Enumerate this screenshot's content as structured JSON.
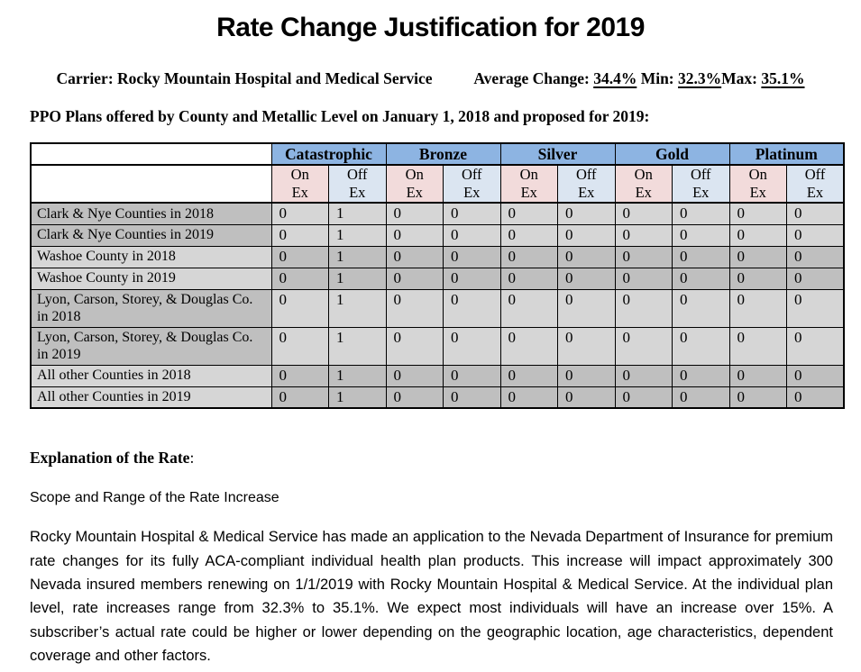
{
  "title": "Rate Change Justification for 2019",
  "carrier": {
    "label": "Carrier:",
    "name": "Rocky Mountain Hospital and Medical Service",
    "average_label": "Average Change:",
    "average_value": "34.4%",
    "min_label": "Min:",
    "min_value": "32.3%",
    "max_label": "Max:",
    "max_value": "35.1%"
  },
  "table_caption": "PPO Plans offered by County and Metallic Level on January 1, 2018 and proposed for 2019:",
  "table": {
    "levels": [
      "Catastrophic",
      "Bronze",
      "Silver",
      "Gold",
      "Platinum"
    ],
    "sub_on": "On\nEx",
    "sub_off": "Off\nEx",
    "rows": [
      {
        "label": "Clark & Nye Counties in 2018",
        "label_shade": "dark",
        "data_shade": "light",
        "values": [
          "0",
          "1",
          "0",
          "0",
          "0",
          "0",
          "0",
          "0",
          "0",
          "0"
        ]
      },
      {
        "label": "Clark & Nye Counties in 2019",
        "label_shade": "dark",
        "data_shade": "light",
        "values": [
          "0",
          "1",
          "0",
          "0",
          "0",
          "0",
          "0",
          "0",
          "0",
          "0"
        ]
      },
      {
        "label": "Washoe County in 2018",
        "label_shade": "light",
        "data_shade": "dark",
        "values": [
          "0",
          "1",
          "0",
          "0",
          "0",
          "0",
          "0",
          "0",
          "0",
          "0"
        ]
      },
      {
        "label": "Washoe County in 2019",
        "label_shade": "light",
        "data_shade": "dark",
        "values": [
          "0",
          "1",
          "0",
          "0",
          "0",
          "0",
          "0",
          "0",
          "0",
          "0"
        ]
      },
      {
        "label": "Lyon, Carson, Storey, & Douglas Co. in 2018",
        "label_shade": "dark",
        "data_shade": "light",
        "values": [
          "0",
          "1",
          "0",
          "0",
          "0",
          "0",
          "0",
          "0",
          "0",
          "0"
        ]
      },
      {
        "label": "Lyon, Carson, Storey, & Douglas Co. in 2019",
        "label_shade": "dark",
        "data_shade": "light",
        "values": [
          "0",
          "1",
          "0",
          "0",
          "0",
          "0",
          "0",
          "0",
          "0",
          "0"
        ]
      },
      {
        "label": "All other Counties in 2018",
        "label_shade": "light",
        "data_shade": "dark",
        "values": [
          "0",
          "1",
          "0",
          "0",
          "0",
          "0",
          "0",
          "0",
          "0",
          "0"
        ]
      },
      {
        "label": "All other Counties in 2019",
        "label_shade": "light",
        "data_shade": "dark",
        "values": [
          "0",
          "1",
          "0",
          "0",
          "0",
          "0",
          "0",
          "0",
          "0",
          "0"
        ]
      }
    ]
  },
  "explanation": {
    "heading": "Explanation of the Rate",
    "heading_colon": ":",
    "subheading": "Scope and Range of the Rate Increase",
    "paragraph": "Rocky Mountain Hospital & Medical Service has made an application to the Nevada Department of Insurance for premium rate changes for its fully ACA-compliant individual health plan products. This increase will impact approximately 300 Nevada insured members renewing on 1/1/2019 with Rocky Mountain Hospital & Medical Service.  At the individual plan level, rate increases range from 32.3% to 35.1%.  We expect most individuals will have an increase over 15%.  A subscriber’s actual rate could be higher or lower depending on the geographic location, age characteristics, dependent coverage and other factors."
  },
  "colors": {
    "header_blue": "#8DB4E2",
    "on_ex_pink": "#F2DBDB",
    "off_ex_blue": "#DBE5F1",
    "row_dark": "#BFBFBF",
    "row_light": "#D6D6D6"
  }
}
